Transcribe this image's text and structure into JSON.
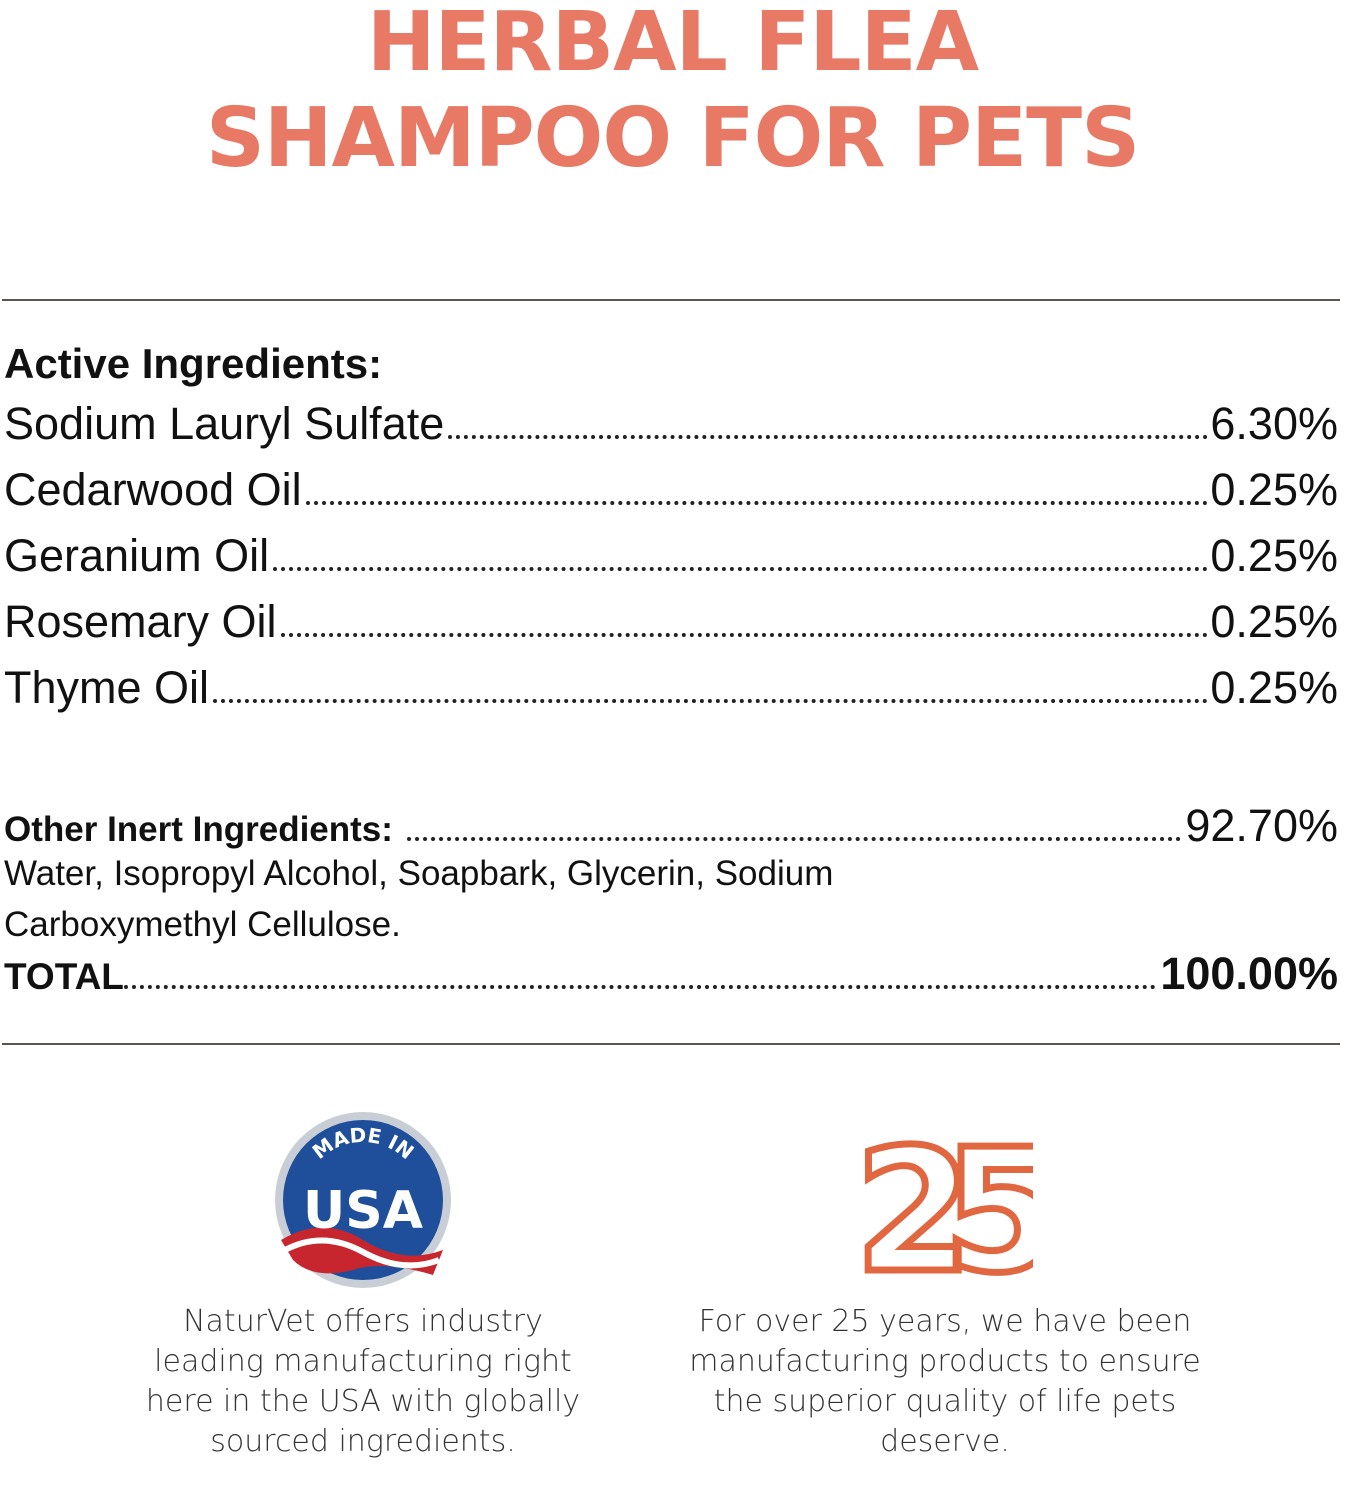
{
  "header": {
    "title_lines": [
      "HERBAL FLEA",
      "SHAMPOO FOR PETS"
    ]
  },
  "active": {
    "heading": "Active Ingredients:",
    "rows": [
      [
        "Sodium Lauryl Sulfate",
        "6.30%"
      ],
      [
        "Cedarwood Oil",
        "0.25%"
      ],
      [
        "Geranium Oil",
        "0.25%"
      ],
      [
        "Rosemary Oil",
        "0.25%"
      ],
      [
        "Thyme Oil",
        "0.25%"
      ]
    ]
  },
  "inert": {
    "heading": "Other Inert Ingredients:",
    "value": "92.70%",
    "list": "Water, Isopropyl Alcohol, Soapbark, Glycerin, Sodium Carboxymethyl Cellulose."
  },
  "total": {
    "label": "TOTAL",
    "value": "100.00%"
  },
  "badges": [
    {
      "top": "MADE IN",
      "main": "USA",
      "caption": "NaturVet offers industry leading manufacturing right here in the USA with globally sourced ingredients."
    },
    {
      "main": "25",
      "caption": "For over 25 years, we have been manufacturing products to ensure the superior quality of life pets deserve."
    }
  ]
}
